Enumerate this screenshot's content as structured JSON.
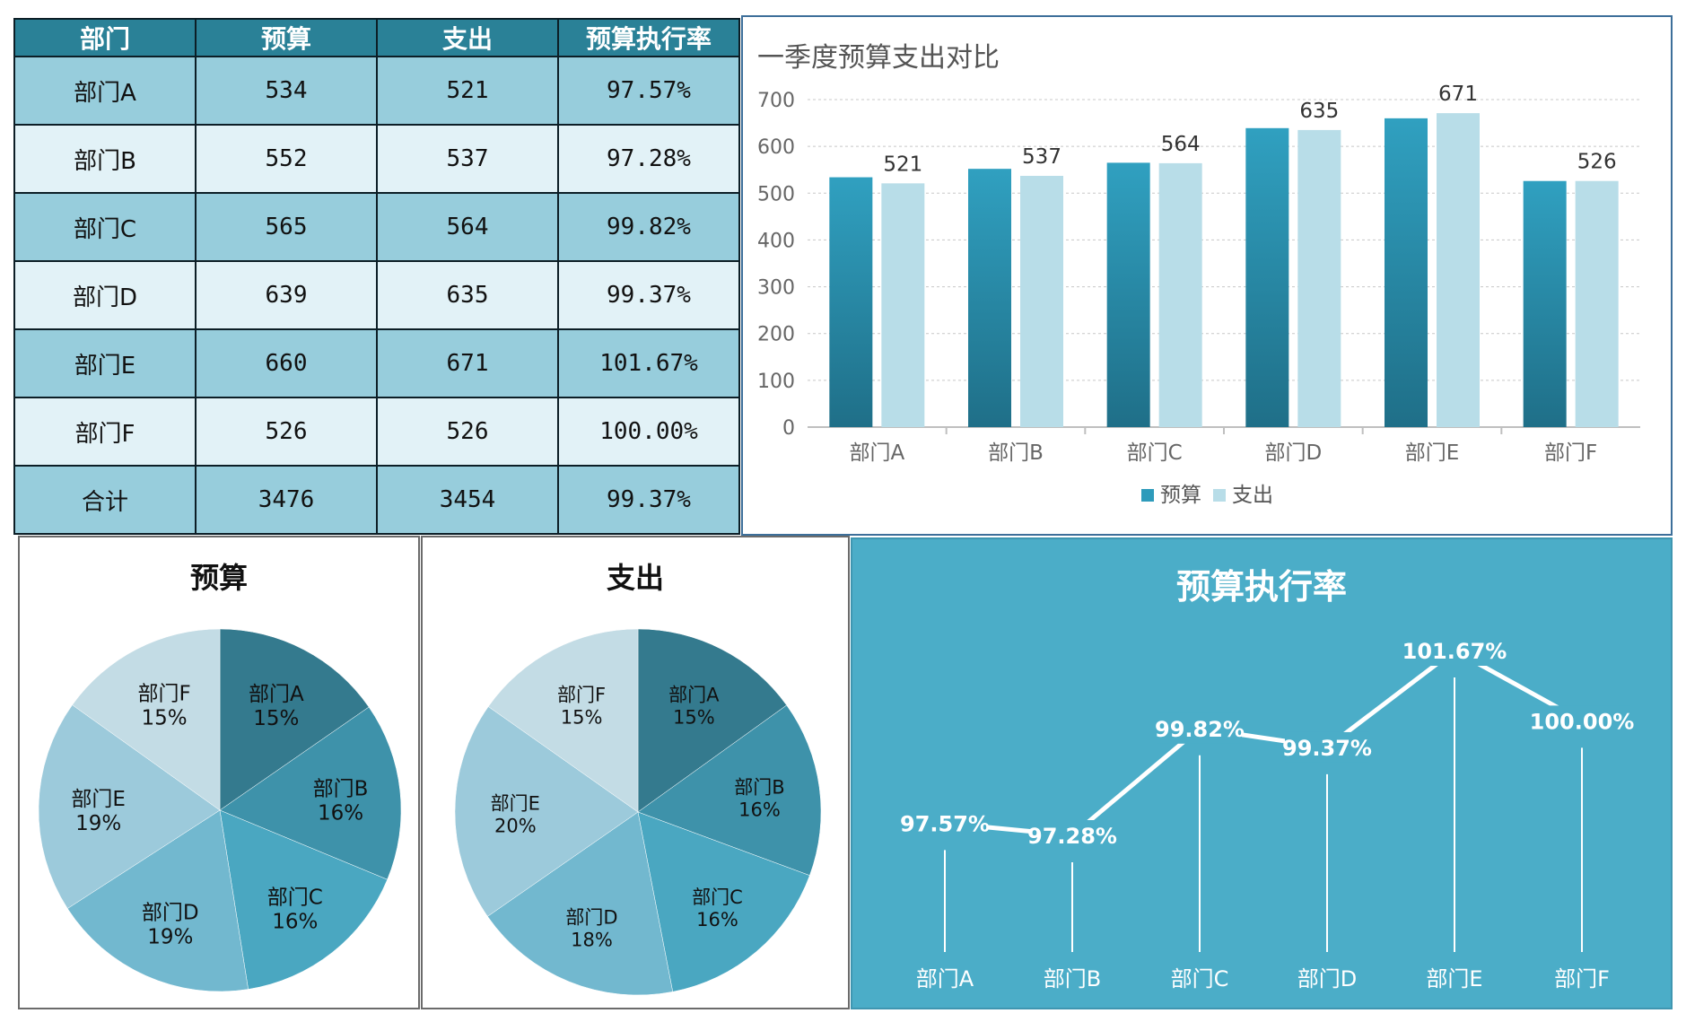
{
  "table": {
    "headers": [
      "部门",
      "预算",
      "支出",
      "预算执行率"
    ],
    "rows": [
      [
        "部门A",
        "534",
        "521",
        "97.57%"
      ],
      [
        "部门B",
        "552",
        "537",
        "97.28%"
      ],
      [
        "部门C",
        "565",
        "564",
        "99.82%"
      ],
      [
        "部门D",
        "639",
        "635",
        "99.37%"
      ],
      [
        "部门E",
        "660",
        "671",
        "101.67%"
      ],
      [
        "部门F",
        "526",
        "526",
        "100.00%"
      ]
    ],
    "total": [
      "合计",
      "3476",
      "3454",
      "99.37%"
    ]
  },
  "colors": {
    "header": "#2a8197",
    "row_dark": "#97cddc",
    "row_light": "#e2f2f7",
    "budget_bar": "#2e9bbb",
    "expense_bar": "#b8dde8",
    "line_bg": "#4badc8",
    "pie": [
      "#347a8e",
      "#3e92aa",
      "#4aa7c1",
      "#72b8cf",
      "#9ccadb",
      "#c3dce5"
    ]
  },
  "chart_data": [
    {
      "type": "bar",
      "title": "一季度预算支出对比",
      "categories": [
        "部门A",
        "部门B",
        "部门C",
        "部门D",
        "部门E",
        "部门F"
      ],
      "series": [
        {
          "name": "预算",
          "values": [
            534,
            552,
            565,
            639,
            660,
            526
          ]
        },
        {
          "name": "支出",
          "values": [
            521,
            537,
            564,
            635,
            671,
            526
          ]
        }
      ],
      "data_labels_series": "支出",
      "ylim": [
        0,
        700
      ],
      "yticks": [
        0,
        100,
        200,
        300,
        400,
        500,
        600,
        700
      ],
      "grid": true,
      "legend": "bottom"
    },
    {
      "type": "pie",
      "title": "预算",
      "labels": [
        "部门A",
        "部门B",
        "部门C",
        "部门D",
        "部门E",
        "部门F"
      ],
      "values": [
        534,
        552,
        565,
        639,
        660,
        526
      ],
      "percent_labels": [
        "15%",
        "16%",
        "16%",
        "19%",
        "19%",
        "15%"
      ]
    },
    {
      "type": "pie",
      "title": "支出",
      "labels": [
        "部门A",
        "部门B",
        "部门C",
        "部门D",
        "部门E",
        "部门F"
      ],
      "values": [
        521,
        537,
        564,
        635,
        671,
        526
      ],
      "percent_labels": [
        "15%",
        "16%",
        "16%",
        "18%",
        "20%",
        "15%"
      ]
    },
    {
      "type": "line",
      "title": "预算执行率",
      "categories": [
        "部门A",
        "部门B",
        "部门C",
        "部门D",
        "部门E",
        "部门F"
      ],
      "values": [
        97.57,
        97.28,
        99.82,
        99.37,
        101.67,
        100.0
      ],
      "value_labels": [
        "97.57%",
        "97.28%",
        "99.82%",
        "99.37%",
        "101.67%",
        "100.00%"
      ],
      "grid": false
    }
  ]
}
